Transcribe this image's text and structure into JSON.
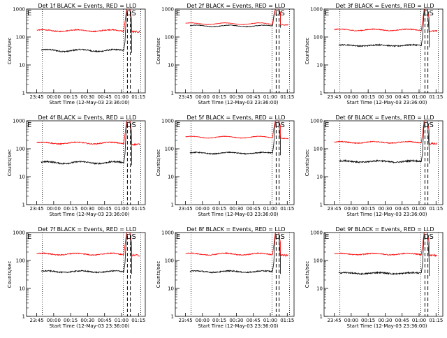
{
  "chart_data": [
    {
      "type": "line",
      "title": "Det 1f BLACK = Events, RED = LLD",
      "xlabel": "Start Time (12-May-03 23:36:00)",
      "ylabel": "Counts/sec",
      "y_scale": "log",
      "ylim": [
        1,
        1000
      ],
      "yticks": [
        "1",
        "10",
        "100",
        "1000"
      ],
      "xticks": [
        "23:45",
        "00:00",
        "00:15",
        "00:30",
        "00:45",
        "01:00",
        "01:15"
      ],
      "markers": [
        "E",
        "DS"
      ],
      "series": [
        {
          "color": "#000000",
          "base": 33,
          "amp": 0.08,
          "noise": 0.045,
          "rise": 1800,
          "rise_start": 0.1
        },
        {
          "color": "#ff0000",
          "base": 170,
          "amp": 0.07,
          "noise": 0.035,
          "rise": 2200,
          "rise_start": 0.0
        }
      ]
    },
    {
      "type": "line",
      "title": "Det 2f BLACK = Events, RED = LLD",
      "xlabel": "Start Time (12-May-03 23:36:00)",
      "ylabel": "Counts/sec",
      "y_scale": "log",
      "ylim": [
        1,
        1000
      ],
      "yticks": [
        "1",
        "10",
        "100",
        "1000"
      ],
      "xticks": [
        "23:45",
        "00:00",
        "00:15",
        "00:30",
        "00:45",
        "01:00",
        "01:15"
      ],
      "markers": [
        "E",
        "DS"
      ],
      "series": [
        {
          "color": "#000000",
          "base": 250,
          "amp": 0.06,
          "noise": 0.02,
          "rise": 2000,
          "rise_start": 0.4
        },
        {
          "color": "#ff0000",
          "base": 300,
          "amp": 0.07,
          "noise": 0.015,
          "rise": 2500,
          "rise_start": 0.5
        }
      ]
    },
    {
      "type": "line",
      "title": "Det 3f BLACK = Events, RED = LLD",
      "xlabel": "Start Time (12-May-03 23:36:00)",
      "ylabel": "Counts/sec",
      "y_scale": "log",
      "ylim": [
        1,
        1000
      ],
      "yticks": [
        "1",
        "10",
        "100",
        "1000"
      ],
      "xticks": [
        "23:45",
        "00:00",
        "00:15",
        "00:30",
        "00:45",
        "01:00",
        "01:15"
      ],
      "markers": [
        "E",
        "DS"
      ],
      "series": [
        {
          "color": "#000000",
          "base": 50,
          "amp": 0.05,
          "noise": 0.04,
          "rise": 1500,
          "rise_start": 0.2
        },
        {
          "color": "#ff0000",
          "base": 180,
          "amp": 0.06,
          "noise": 0.03,
          "rise": 2200,
          "rise_start": 0.0
        }
      ]
    },
    {
      "type": "line",
      "title": "Det 4f BLACK = Events, RED = LLD",
      "xlabel": "Start Time (12-May-03 23:36:00)",
      "ylabel": "Counts/sec",
      "y_scale": "log",
      "ylim": [
        1,
        1000
      ],
      "yticks": [
        "1",
        "10",
        "100",
        "1000"
      ],
      "xticks": [
        "23:45",
        "00:00",
        "00:15",
        "00:30",
        "00:45",
        "01:00",
        "01:15"
      ],
      "markers": [
        "E",
        "DS"
      ],
      "series": [
        {
          "color": "#000000",
          "base": 32,
          "amp": 0.08,
          "noise": 0.05,
          "rise": 1800,
          "rise_start": 0.1
        },
        {
          "color": "#ff0000",
          "base": 160,
          "amp": 0.07,
          "noise": 0.035,
          "rise": 2200,
          "rise_start": 0.0
        }
      ]
    },
    {
      "type": "line",
      "title": "Det 5f BLACK = Events, RED = LLD",
      "xlabel": "Start Time (12-May-03 23:36:00)",
      "ylabel": "Counts/sec",
      "y_scale": "log",
      "ylim": [
        1,
        1000
      ],
      "yticks": [
        "1",
        "10",
        "100",
        "1000"
      ],
      "xticks": [
        "23:45",
        "00:00",
        "00:15",
        "00:30",
        "00:45",
        "01:00",
        "01:15"
      ],
      "markers": [
        "E",
        "DS"
      ],
      "series": [
        {
          "color": "#000000",
          "base": 70,
          "amp": 0.06,
          "noise": 0.035,
          "rise": 2000,
          "rise_start": 0.3
        },
        {
          "color": "#ff0000",
          "base": 260,
          "amp": 0.07,
          "noise": 0.02,
          "rise": 2400,
          "rise_start": 0.3
        }
      ]
    },
    {
      "type": "line",
      "title": "Det 6f BLACK = Events, RED = LLD",
      "xlabel": "Start Time (12-May-03 23:36:00)",
      "ylabel": "Counts/sec",
      "y_scale": "log",
      "ylim": [
        1,
        1000
      ],
      "yticks": [
        "1",
        "10",
        "100",
        "1000"
      ],
      "xticks": [
        "23:45",
        "00:00",
        "00:15",
        "00:30",
        "00:45",
        "01:00",
        "01:15"
      ],
      "markers": [
        "E",
        "DS"
      ],
      "series": [
        {
          "color": "#000000",
          "base": 35,
          "amp": 0.06,
          "noise": 0.05,
          "rise": 1700,
          "rise_start": 0.1
        },
        {
          "color": "#ff0000",
          "base": 170,
          "amp": 0.06,
          "noise": 0.035,
          "rise": 2200,
          "rise_start": 0.0
        }
      ]
    },
    {
      "type": "line",
      "title": "Det 7f BLACK = Events, RED = LLD",
      "xlabel": "Start Time (12-May-03 23:36:00)",
      "ylabel": "Counts/sec",
      "y_scale": "log",
      "ylim": [
        1,
        1000
      ],
      "yticks": [
        "1",
        "10",
        "100",
        "1000"
      ],
      "xticks": [
        "23:45",
        "00:00",
        "00:15",
        "00:30",
        "00:45",
        "01:00",
        "01:15"
      ],
      "markers": [
        "E",
        "DS"
      ],
      "series": [
        {
          "color": "#000000",
          "base": 40,
          "amp": 0.06,
          "noise": 0.04,
          "rise": 1800,
          "rise_start": 0.1
        },
        {
          "color": "#ff0000",
          "base": 170,
          "amp": 0.07,
          "noise": 0.035,
          "rise": 2300,
          "rise_start": 0.0
        }
      ]
    },
    {
      "type": "line",
      "title": "Det 8f BLACK = Events, RED = LLD",
      "xlabel": "Start Time (12-May-03 23:36:00)",
      "ylabel": "Counts/sec",
      "y_scale": "log",
      "ylim": [
        1,
        1000
      ],
      "yticks": [
        "1",
        "10",
        "100",
        "1000"
      ],
      "xticks": [
        "23:45",
        "00:00",
        "00:15",
        "00:30",
        "00:45",
        "01:00",
        "01:15"
      ],
      "markers": [
        "E",
        "DS"
      ],
      "series": [
        {
          "color": "#000000",
          "base": 40,
          "amp": 0.06,
          "noise": 0.04,
          "rise": 1800,
          "rise_start": 0.2
        },
        {
          "color": "#ff0000",
          "base": 170,
          "amp": 0.07,
          "noise": 0.035,
          "rise": 2300,
          "rise_start": 0.0
        }
      ]
    },
    {
      "type": "line",
      "title": "Det 9f BLACK = Events, RED = LLD",
      "xlabel": "Start Time (12-May-03 23:36:00)",
      "ylabel": "Counts/sec",
      "y_scale": "log",
      "ylim": [
        1,
        1000
      ],
      "yticks": [
        "1",
        "10",
        "100",
        "1000"
      ],
      "xticks": [
        "23:45",
        "00:00",
        "00:15",
        "00:30",
        "00:45",
        "01:00",
        "01:15"
      ],
      "markers": [
        "E",
        "DS"
      ],
      "series": [
        {
          "color": "#000000",
          "base": 35,
          "amp": 0.05,
          "noise": 0.05,
          "rise": 1700,
          "rise_start": 0.2
        },
        {
          "color": "#ff0000",
          "base": 170,
          "amp": 0.06,
          "noise": 0.035,
          "rise": 2200,
          "rise_start": 0.0
        }
      ]
    }
  ]
}
